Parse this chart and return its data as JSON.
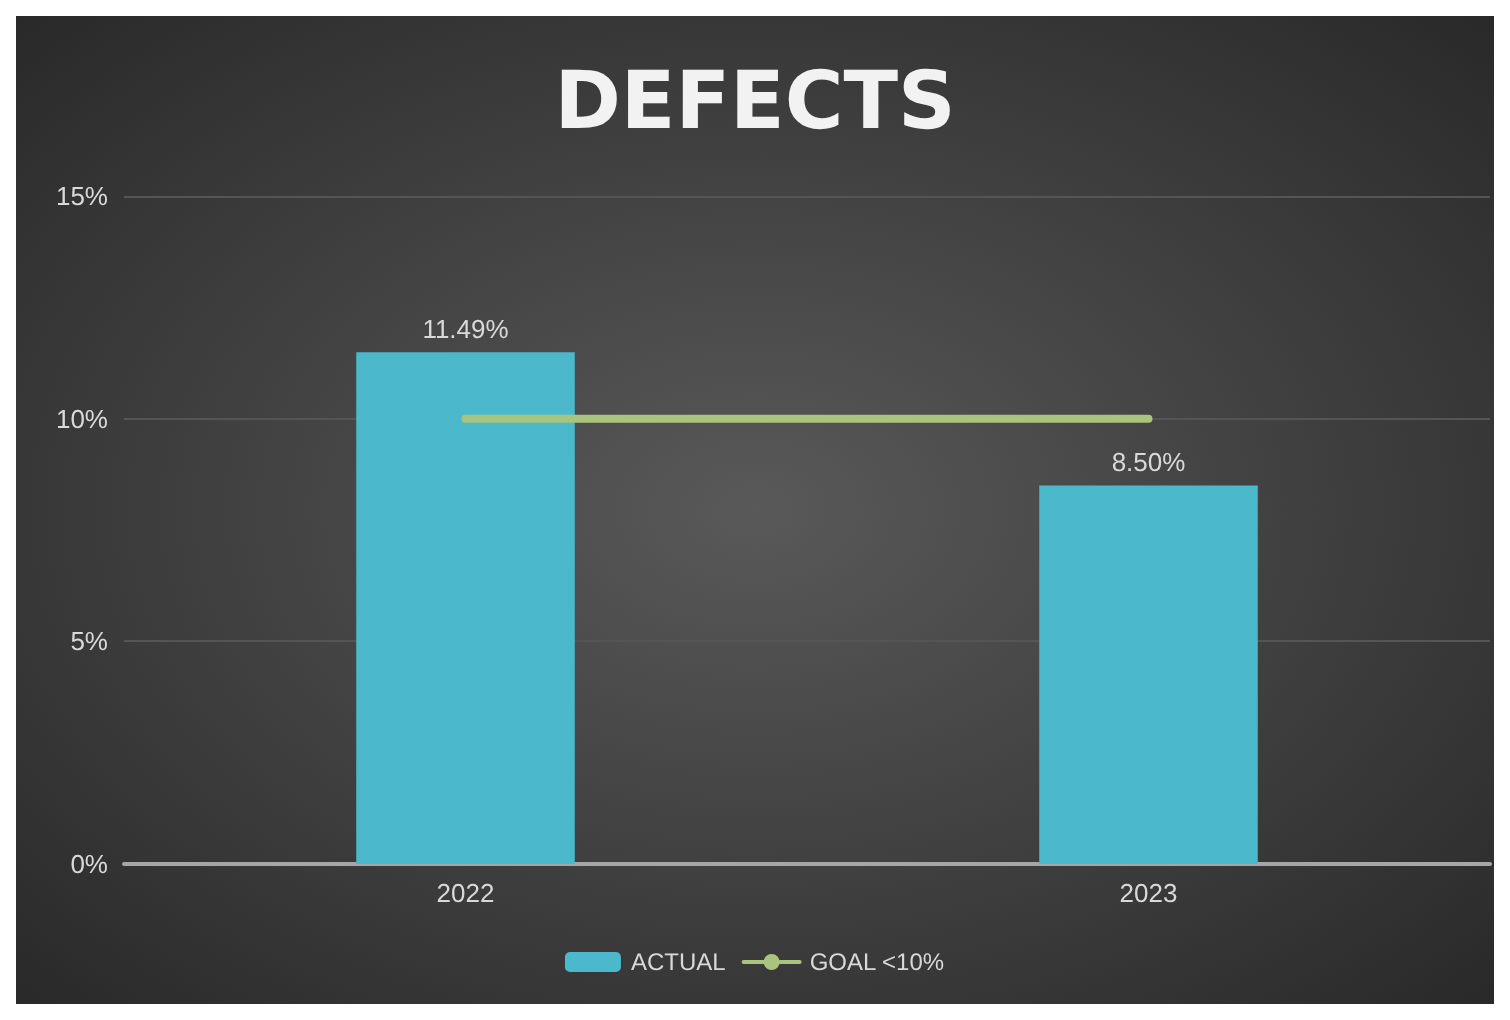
{
  "chart_data": {
    "type": "bar",
    "title": "DEFECTS",
    "categories": [
      "2022",
      "2023"
    ],
    "series": [
      {
        "name": "ACTUAL",
        "color": "#4bb8cc",
        "values": [
          11.49,
          8.5
        ],
        "value_labels": [
          "11.49%",
          "8.50%"
        ]
      },
      {
        "name": "GOAL <10%",
        "type": "line",
        "color": "#a9c47f",
        "values": [
          10,
          10
        ]
      }
    ],
    "ylim": [
      0,
      15
    ],
    "yticks": [
      {
        "value": 0,
        "label": "0%"
      },
      {
        "value": 5,
        "label": "5%"
      },
      {
        "value": 10,
        "label": "10%"
      },
      {
        "value": 15,
        "label": "15%"
      }
    ],
    "grid": "y",
    "legend": "bottom",
    "marker": "none",
    "line_style": "solid"
  }
}
